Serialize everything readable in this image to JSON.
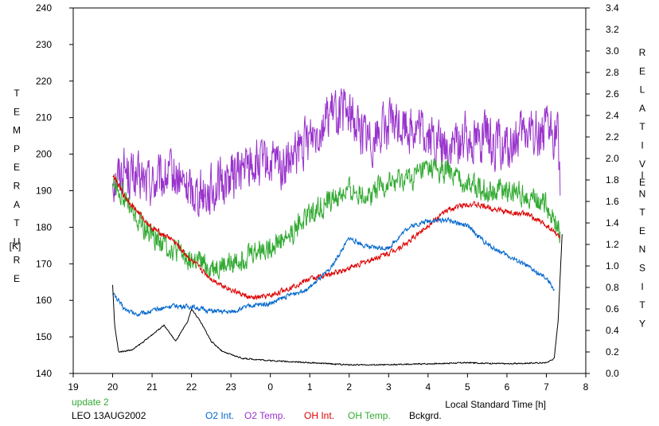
{
  "chart_data": {
    "type": "line",
    "xlabel": "Local Standard Time [h]",
    "ylabel_left_letters": [
      "T",
      "E",
      "M",
      "P",
      "E",
      "R",
      "A",
      "T",
      "U",
      "R",
      "E"
    ],
    "ylabel_left_unit": "[K]",
    "ylabel_right_letters_1": [
      "R",
      "E",
      "L",
      "A",
      "T",
      "I",
      "V",
      "E"
    ],
    "ylabel_right_letters_2": [
      "I",
      "N",
      "T",
      "E",
      "N",
      "S",
      "I",
      "T",
      "Y"
    ],
    "x_tick_labels": [
      "19",
      "20",
      "21",
      "22",
      "23",
      "0",
      "1",
      "2",
      "3",
      "4",
      "5",
      "6",
      "7",
      "8"
    ],
    "x_range_hours": [
      19,
      32
    ],
    "y_left_ticks": [
      140,
      150,
      160,
      170,
      180,
      190,
      200,
      210,
      220,
      230,
      240
    ],
    "y_left_range": [
      140,
      240
    ],
    "y_right_ticks": [
      "0.0",
      "0.2",
      "0.4",
      "0.6",
      "0.8",
      "1.0",
      "1.2",
      "1.4",
      "1.6",
      "1.8",
      "2.0",
      "2.2",
      "2.4",
      "2.6",
      "2.8",
      "3.0",
      "3.2",
      "3.4"
    ],
    "y_right_range": [
      0,
      3.4
    ],
    "grid": false,
    "series": [
      {
        "name": "O2 Temp.",
        "axis": "left",
        "color": "#9933cc",
        "noise": 9,
        "points": [
          [
            20.0,
            193
          ],
          [
            20.3,
            196
          ],
          [
            20.6,
            193
          ],
          [
            21.0,
            192
          ],
          [
            21.5,
            194
          ],
          [
            22.0,
            190
          ],
          [
            22.5,
            190
          ],
          [
            23.0,
            194
          ],
          [
            23.5,
            197
          ],
          [
            24.0,
            197
          ],
          [
            24.5,
            197
          ],
          [
            25.0,
            205
          ],
          [
            25.5,
            211
          ],
          [
            26.0,
            211
          ],
          [
            26.5,
            204
          ],
          [
            27.0,
            208
          ],
          [
            27.5,
            208
          ],
          [
            28.0,
            205
          ],
          [
            28.5,
            201
          ],
          [
            29.0,
            205
          ],
          [
            29.5,
            204
          ],
          [
            30.0,
            201
          ],
          [
            30.5,
            206
          ],
          [
            31.0,
            206
          ],
          [
            31.3,
            205
          ],
          [
            31.35,
            193
          ]
        ]
      },
      {
        "name": "OH Temp.",
        "axis": "left",
        "color": "#33aa33",
        "noise": 4.5,
        "points": [
          [
            20.0,
            193
          ],
          [
            20.3,
            188
          ],
          [
            20.6,
            182
          ],
          [
            21.0,
            178
          ],
          [
            21.5,
            174
          ],
          [
            22.0,
            171
          ],
          [
            22.5,
            169
          ],
          [
            23.0,
            170
          ],
          [
            23.5,
            173
          ],
          [
            24.0,
            175
          ],
          [
            24.5,
            178
          ],
          [
            25.0,
            184
          ],
          [
            25.5,
            187
          ],
          [
            26.0,
            190
          ],
          [
            26.5,
            189
          ],
          [
            27.0,
            192
          ],
          [
            27.5,
            193
          ],
          [
            28.0,
            196
          ],
          [
            28.5,
            195
          ],
          [
            29.0,
            192
          ],
          [
            29.5,
            190
          ],
          [
            30.0,
            190
          ],
          [
            30.5,
            189
          ],
          [
            31.0,
            186
          ],
          [
            31.35,
            179
          ]
        ]
      },
      {
        "name": "OH Int.",
        "axis": "right",
        "color": "#dd0000",
        "noise": 0.035,
        "points": [
          [
            20.0,
            1.85
          ],
          [
            20.3,
            1.65
          ],
          [
            20.6,
            1.52
          ],
          [
            21.0,
            1.35
          ],
          [
            21.5,
            1.25
          ],
          [
            22.0,
            1.05
          ],
          [
            22.5,
            0.88
          ],
          [
            23.0,
            0.78
          ],
          [
            23.5,
            0.7
          ],
          [
            24.0,
            0.72
          ],
          [
            24.5,
            0.8
          ],
          [
            25.0,
            0.88
          ],
          [
            25.5,
            0.92
          ],
          [
            26.0,
            0.98
          ],
          [
            26.5,
            1.05
          ],
          [
            27.0,
            1.12
          ],
          [
            27.5,
            1.22
          ],
          [
            28.0,
            1.38
          ],
          [
            28.5,
            1.52
          ],
          [
            29.0,
            1.58
          ],
          [
            29.5,
            1.55
          ],
          [
            30.0,
            1.5
          ],
          [
            30.5,
            1.48
          ],
          [
            31.0,
            1.38
          ],
          [
            31.35,
            1.27
          ]
        ]
      },
      {
        "name": "O2 Int.",
        "axis": "right",
        "color": "#0066cc",
        "noise": 0.03,
        "points": [
          [
            20.0,
            0.75
          ],
          [
            20.3,
            0.6
          ],
          [
            20.6,
            0.55
          ],
          [
            21.0,
            0.58
          ],
          [
            21.5,
            0.63
          ],
          [
            22.0,
            0.62
          ],
          [
            22.5,
            0.58
          ],
          [
            23.0,
            0.57
          ],
          [
            23.5,
            0.63
          ],
          [
            24.0,
            0.65
          ],
          [
            24.5,
            0.73
          ],
          [
            25.0,
            0.8
          ],
          [
            25.5,
            0.96
          ],
          [
            26.0,
            1.26
          ],
          [
            26.5,
            1.17
          ],
          [
            27.0,
            1.17
          ],
          [
            27.5,
            1.36
          ],
          [
            28.0,
            1.42
          ],
          [
            28.5,
            1.43
          ],
          [
            29.0,
            1.37
          ],
          [
            29.5,
            1.2
          ],
          [
            30.0,
            1.1
          ],
          [
            30.5,
            1.0
          ],
          [
            31.0,
            0.88
          ],
          [
            31.2,
            0.78
          ]
        ]
      },
      {
        "name": "Bckgrd.",
        "axis": "right",
        "color": "#000000",
        "noise": 0.008,
        "points": [
          [
            20.0,
            0.82
          ],
          [
            20.05,
            0.45
          ],
          [
            20.15,
            0.2
          ],
          [
            20.5,
            0.22
          ],
          [
            20.8,
            0.3
          ],
          [
            21.3,
            0.45
          ],
          [
            21.6,
            0.3
          ],
          [
            21.9,
            0.48
          ],
          [
            22.0,
            0.6
          ],
          [
            22.2,
            0.5
          ],
          [
            22.5,
            0.3
          ],
          [
            22.8,
            0.2
          ],
          [
            23.3,
            0.14
          ],
          [
            24.0,
            0.12
          ],
          [
            25.0,
            0.1
          ],
          [
            26.0,
            0.08
          ],
          [
            27.0,
            0.08
          ],
          [
            28.0,
            0.09
          ],
          [
            29.0,
            0.1
          ],
          [
            30.0,
            0.09
          ],
          [
            31.0,
            0.1
          ],
          [
            31.2,
            0.14
          ],
          [
            31.3,
            0.5
          ],
          [
            31.4,
            1.3
          ]
        ]
      }
    ],
    "legend": {
      "placement": "bottom",
      "status": "update 2",
      "site_date": "LEO 13AUG2002",
      "items": [
        {
          "label": "O2 Int.",
          "color": "#0066cc"
        },
        {
          "label": "O2 Temp.",
          "color": "#9933cc"
        },
        {
          "label": "OH Int.",
          "color": "#dd0000"
        },
        {
          "label": "OH Temp.",
          "color": "#33aa33"
        },
        {
          "label": "Bckgrd.",
          "color": "#000000"
        }
      ]
    }
  }
}
